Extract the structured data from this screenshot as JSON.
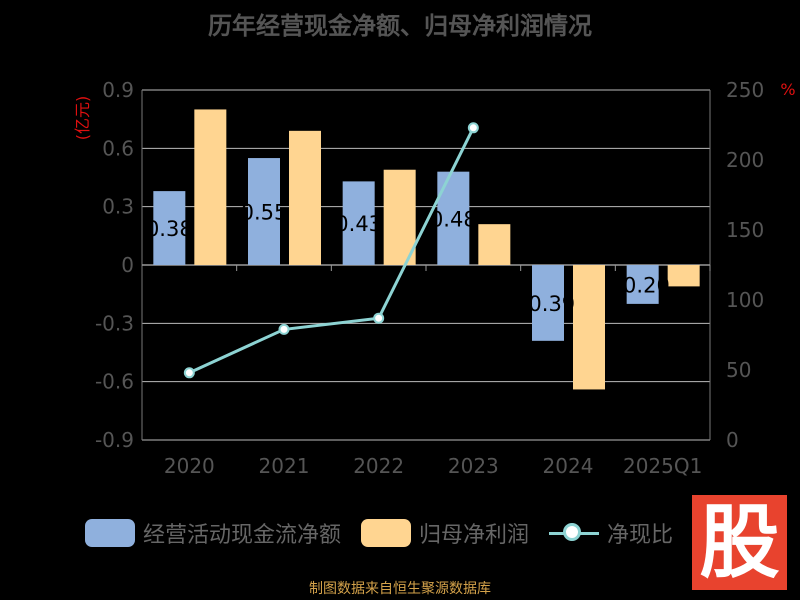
{
  "title": "历年经营现金净额、归母净利润情况",
  "source": "制图数据来自恒生聚源数据库",
  "watermark": "股",
  "legend": [
    {
      "label": "经营活动现金流净额",
      "color": "#8fb0dd"
    },
    {
      "label": "归母净利润",
      "color": "#ffd591"
    },
    {
      "label": "净现比"
    }
  ],
  "chart_data": {
    "type": "bar",
    "categories": [
      "2020",
      "2021",
      "2022",
      "2023",
      "2024",
      "2025Q1"
    ],
    "series": [
      {
        "name": "经营活动现金流净额",
        "values": [
          0.38,
          0.55,
          0.43,
          0.48,
          -0.39,
          -0.2
        ],
        "data_labels": [
          "0.38",
          "0.55",
          "0.43",
          "0.48",
          "-0.39",
          "-0.20"
        ],
        "color": "#8fb0dd"
      },
      {
        "name": "归母净利润",
        "values": [
          0.8,
          0.69,
          0.49,
          0.21,
          -0.64,
          -0.11
        ],
        "color": "#ffd591"
      },
      {
        "name": "净现比",
        "type": "line",
        "axis": "right",
        "values": [
          48,
          79,
          87,
          223,
          null,
          null
        ],
        "color": "#8dd3d3"
      }
    ],
    "y_left": {
      "label": "(亿元)",
      "ticks": [
        "0.9",
        "0.6",
        "0.3",
        "0",
        "-0.3",
        "-0.6",
        "-0.9"
      ],
      "range": [
        -0.9,
        0.9
      ]
    },
    "y_right": {
      "label": "%",
      "ticks": [
        "250",
        "200",
        "150",
        "100",
        "50",
        "0"
      ],
      "range": [
        0,
        250
      ]
    },
    "grid": true
  }
}
